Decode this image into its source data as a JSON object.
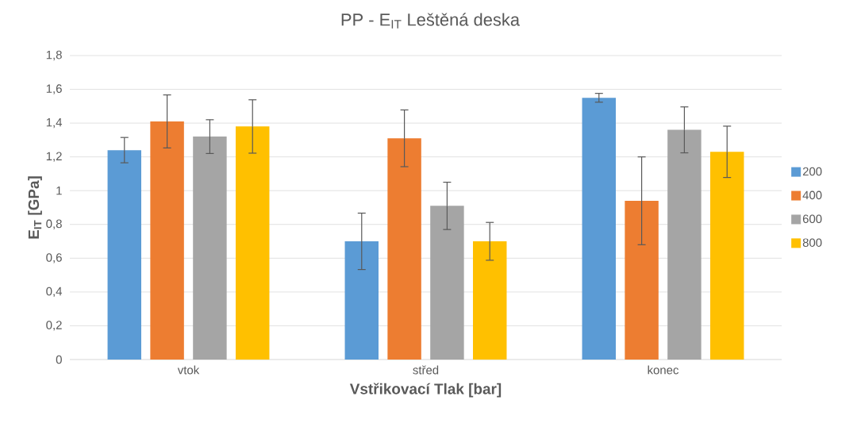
{
  "chart_data": {
    "type": "bar",
    "title": "PP - E$_{IT}$ Leštěná deska",
    "xlabel": "Vstřikovací Tlak [bar]",
    "ylabel": "E$_{IT}$ [GPa]",
    "categories": [
      "vtok",
      "střed",
      "konec"
    ],
    "series": [
      {
        "name": "200",
        "color": "#5b9bd5",
        "values": [
          1.24,
          0.7,
          1.55
        ],
        "errors": [
          0.075,
          0.167,
          0.026
        ]
      },
      {
        "name": "400",
        "color": "#ed7d31",
        "values": [
          1.41,
          1.31,
          0.94
        ],
        "errors": [
          0.157,
          0.168,
          0.26
        ]
      },
      {
        "name": "600",
        "color": "#a5a5a5",
        "values": [
          1.32,
          0.91,
          1.36
        ],
        "errors": [
          0.1,
          0.14,
          0.136
        ]
      },
      {
        "name": "800",
        "color": "#ffc000",
        "values": [
          1.38,
          0.7,
          1.23
        ],
        "errors": [
          0.158,
          0.112,
          0.152
        ]
      }
    ],
    "ylim": [
      0,
      1.8
    ],
    "yticks": [
      0,
      {
        "value": 0.2,
        "label": "0,2"
      },
      {
        "value": 0.4,
        "label": "0,4"
      },
      {
        "value": 0.6,
        "label": "0,6"
      },
      {
        "value": 0.8,
        "label": "0,8"
      },
      1,
      {
        "value": 1.2,
        "label": "1,2"
      },
      {
        "value": 1.4,
        "label": "1,4"
      },
      {
        "value": 1.6,
        "label": "1,6"
      },
      {
        "value": 1.8,
        "label": "1,8"
      }
    ],
    "grid": "y",
    "legend": "right"
  }
}
